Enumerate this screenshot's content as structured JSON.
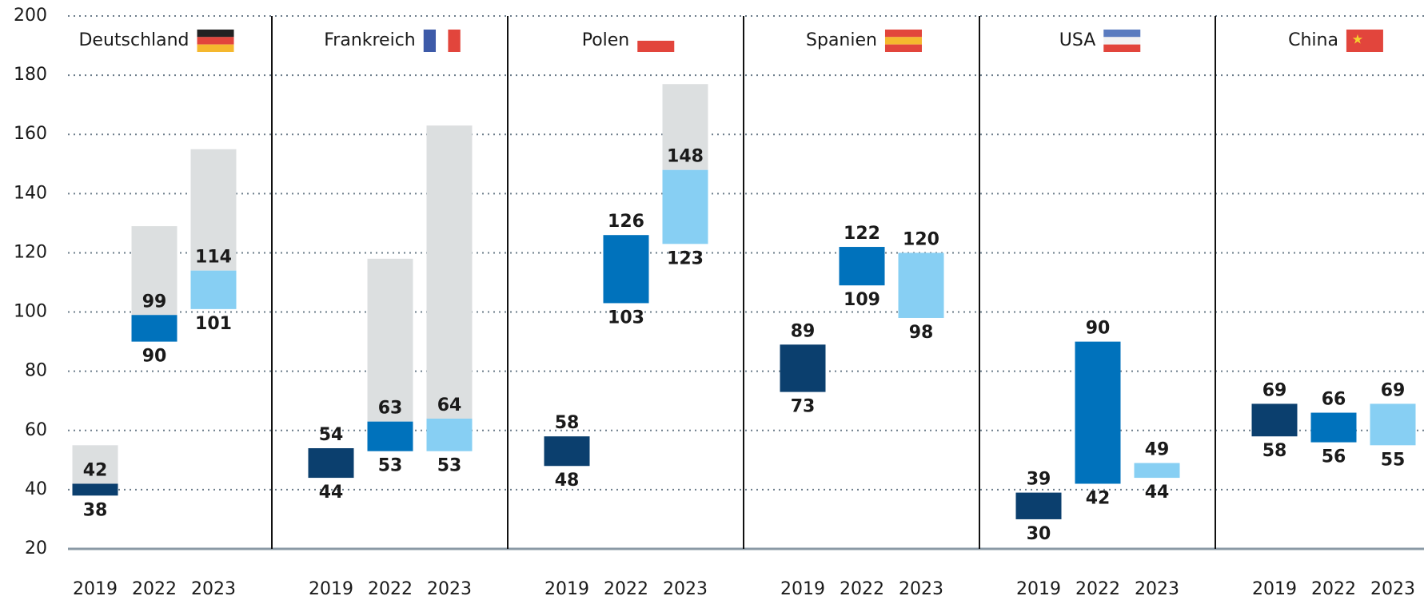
{
  "chart_data": {
    "type": "floating_bar",
    "panels": [
      "Deutschland",
      "Frankreich",
      "Polen",
      "Spanien",
      "USA",
      "China"
    ],
    "series": [
      {
        "name": "2019",
        "color": "#0b3f6e",
        "low": [
          38,
          44,
          48,
          73,
          30,
          58
        ],
        "high": [
          42,
          54,
          58,
          89,
          39,
          69
        ],
        "upper": [
          55,
          null,
          null,
          null,
          null,
          null
        ]
      },
      {
        "name": "2022",
        "color": "#0072bc",
        "low": [
          90,
          53,
          103,
          109,
          42,
          56
        ],
        "high": [
          99,
          63,
          126,
          122,
          90,
          66
        ],
        "upper": [
          129,
          118,
          null,
          null,
          null,
          null
        ]
      },
      {
        "name": "2023",
        "color": "#87cff3",
        "low": [
          101,
          53,
          123,
          98,
          44,
          55
        ],
        "high": [
          114,
          64,
          148,
          120,
          49,
          69
        ],
        "upper": [
          155,
          163,
          177,
          null,
          null,
          null
        ]
      }
    ],
    "upper_color": "#dcdfe0",
    "ylim": [
      20,
      200
    ],
    "yticks": [
      20,
      40,
      60,
      80,
      100,
      120,
      140,
      160,
      180,
      200
    ],
    "grid": true
  }
}
